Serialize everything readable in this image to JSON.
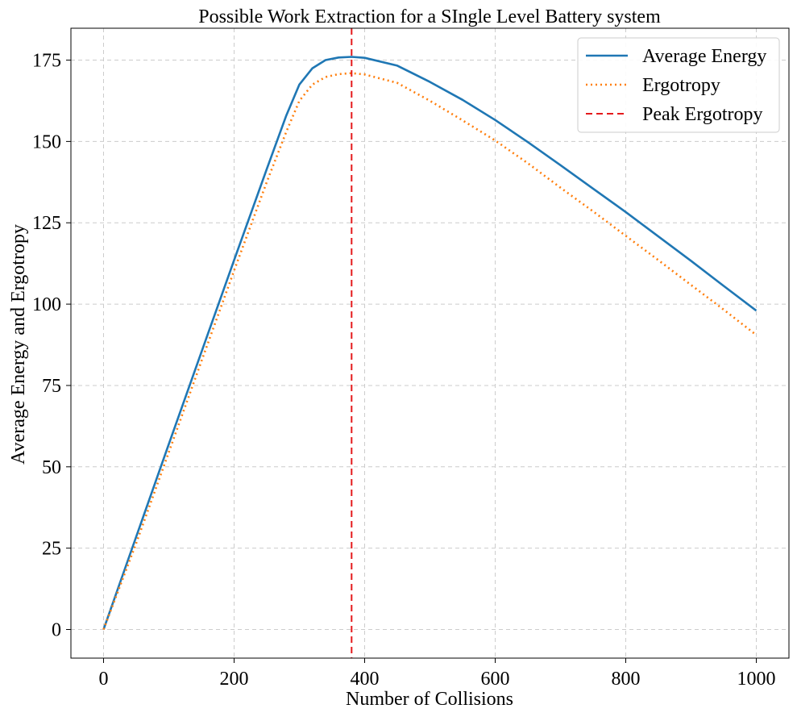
{
  "chart_data": {
    "type": "line",
    "title": "Possible Work Extraction for a SIngle Level Battery system",
    "xlabel": "Number of Collisions",
    "ylabel": "Average Energy and Ergotropy",
    "xlim": [
      -50,
      1050
    ],
    "ylim": [
      -8.8,
      184.8
    ],
    "xticks": [
      0,
      200,
      400,
      600,
      800,
      1000
    ],
    "yticks": [
      0,
      25,
      50,
      75,
      100,
      125,
      150,
      175
    ],
    "grid": true,
    "legend_position": "top-right",
    "series": [
      {
        "name": "Average Energy",
        "color": "#1f77b4",
        "style": "solid",
        "x": [
          0,
          50,
          100,
          150,
          200,
          250,
          280,
          300,
          320,
          340,
          360,
          380,
          400,
          450,
          500,
          550,
          600,
          650,
          700,
          750,
          800,
          850,
          900,
          950,
          1000
        ],
        "y": [
          0,
          28.5,
          57,
          85.3,
          113.5,
          141.5,
          158,
          167.5,
          172.5,
          175,
          175.8,
          176,
          175.7,
          173.3,
          168.3,
          162.8,
          156.6,
          149.8,
          142.7,
          135.5,
          128.3,
          120.8,
          113.3,
          105.6,
          98
        ]
      },
      {
        "name": "Ergotropy",
        "color": "#ff7f0e",
        "style": "dotted",
        "x": [
          0,
          50,
          100,
          150,
          200,
          250,
          280,
          300,
          320,
          340,
          360,
          380,
          400,
          450,
          500,
          550,
          600,
          650,
          700,
          750,
          800,
          850,
          900,
          950,
          1000
        ],
        "y": [
          0,
          26.5,
          54.5,
          82.5,
          110.3,
          137.5,
          153,
          162.5,
          167.5,
          169.8,
          170.7,
          171,
          170.6,
          168,
          162.5,
          156.5,
          150.3,
          143.3,
          135.8,
          128.5,
          121,
          113.5,
          105.9,
          98.3,
          90.5
        ]
      }
    ],
    "vlines": [
      {
        "name": "Peak Ergotropy",
        "x": 380,
        "color": "#e41a1c",
        "style": "dashed"
      }
    ]
  }
}
